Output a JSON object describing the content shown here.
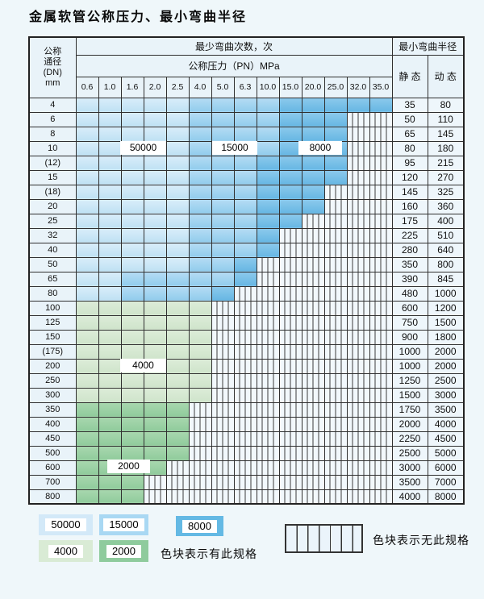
{
  "title": "金属软管公称压力、最小弯曲半径",
  "table": {
    "corner": [
      "公称",
      "通径",
      "(DN)",
      "mm"
    ],
    "bend_header": "最少弯曲次数，次",
    "pn_header": "公称压力（PN）MPa",
    "radius_header": "最小弯曲半径",
    "static_label": "静 态",
    "dynamic_label": "动 态",
    "pn_columns": [
      "0.6",
      "1.0",
      "1.6",
      "2.0",
      "2.5",
      "4.0",
      "5.0",
      "6.3",
      "10.0",
      "15.0",
      "20.0",
      "25.0",
      "32.0",
      "35.0"
    ],
    "cell_code_legend": {
      "L": "50000 cycles (light blue)",
      "M": "15000 cycles (medium blue)",
      "D": "8000 cycles (dark blue)",
      "g": "4000 cycles (light green)",
      "G": "2000 cycles (dark green)",
      ".": "no spec (striped)"
    },
    "rows": [
      {
        "dn": "4",
        "cells": "LLLLLMMMMDDDDD",
        "static": "35",
        "dynamic": "80"
      },
      {
        "dn": "6",
        "cells": "LLLLLMMMMDDD..",
        "static": "50",
        "dynamic": "110"
      },
      {
        "dn": "8",
        "cells": "LLLLLMMMMDDD..",
        "static": "65",
        "dynamic": "145"
      },
      {
        "dn": "10",
        "cells": "LLLLLMMMMDDD..",
        "static": "80",
        "dynamic": "180"
      },
      {
        "dn": "(12)",
        "cells": "LLLLLMMMDDDD..",
        "static": "95",
        "dynamic": "215"
      },
      {
        "dn": "15",
        "cells": "LLLLLMMMDDDD..",
        "static": "120",
        "dynamic": "270"
      },
      {
        "dn": "(18)",
        "cells": "LLLLLMMMDDD...",
        "static": "145",
        "dynamic": "325"
      },
      {
        "dn": "20",
        "cells": "LLLLLMMMDDD...",
        "static": "160",
        "dynamic": "360"
      },
      {
        "dn": "25",
        "cells": "LLLLLMMMDD....",
        "static": "175",
        "dynamic": "400"
      },
      {
        "dn": "32",
        "cells": "LLLLLMMMD.....",
        "static": "225",
        "dynamic": "510"
      },
      {
        "dn": "40",
        "cells": "LLLLLMMMD.....",
        "static": "280",
        "dynamic": "640"
      },
      {
        "dn": "50",
        "cells": "LLLLLMMD......",
        "static": "350",
        "dynamic": "800"
      },
      {
        "dn": "65",
        "cells": "LLMMMMMD......",
        "static": "390",
        "dynamic": "845"
      },
      {
        "dn": "80",
        "cells": "LLMMMMD.......",
        "static": "480",
        "dynamic": "1000"
      },
      {
        "dn": "100",
        "cells": "gggggg........",
        "static": "600",
        "dynamic": "1200"
      },
      {
        "dn": "125",
        "cells": "gggggg........",
        "static": "750",
        "dynamic": "1500"
      },
      {
        "dn": "150",
        "cells": "gggggg........",
        "static": "900",
        "dynamic": "1800"
      },
      {
        "dn": "(175)",
        "cells": "gggggg........",
        "static": "1000",
        "dynamic": "2000"
      },
      {
        "dn": "200",
        "cells": "gggggg........",
        "static": "1000",
        "dynamic": "2000"
      },
      {
        "dn": "250",
        "cells": "gggggg........",
        "static": "1250",
        "dynamic": "2500"
      },
      {
        "dn": "300",
        "cells": "gggggg........",
        "static": "1500",
        "dynamic": "3000"
      },
      {
        "dn": "350",
        "cells": "GGGGG.........",
        "static": "1750",
        "dynamic": "3500"
      },
      {
        "dn": "400",
        "cells": "GGGGG.........",
        "static": "2000",
        "dynamic": "4000"
      },
      {
        "dn": "450",
        "cells": "GGGGG.........",
        "static": "2250",
        "dynamic": "4500"
      },
      {
        "dn": "500",
        "cells": "GGGGG.........",
        "static": "2500",
        "dynamic": "5000"
      },
      {
        "dn": "600",
        "cells": "GGGG..........",
        "static": "3000",
        "dynamic": "6000"
      },
      {
        "dn": "700",
        "cells": "GGG...........",
        "static": "3500",
        "dynamic": "7000"
      },
      {
        "dn": "800",
        "cells": "GGG...........",
        "static": "4000",
        "dynamic": "8000"
      }
    ]
  },
  "overlays": {
    "o50000": "50000",
    "o15000": "15000",
    "o8000": "8000",
    "o4000": "4000",
    "o2000": "2000"
  },
  "legend": {
    "v50000": "50000",
    "v15000": "15000",
    "v8000": "8000",
    "v4000": "4000",
    "v2000": "2000",
    "has_spec": "色块表示有此规格",
    "no_spec": "色块表示无此规格"
  },
  "colors": {
    "cycles_50000": "#cfe7f8",
    "cycles_15000": "#a9d8f3",
    "cycles_8000": "#64b9e4",
    "cycles_4000": "#d9ebd5",
    "cycles_2000": "#8fcb9d",
    "no_spec_bg": "#f2f8fc",
    "grid_line": "#303030",
    "page_bg": "#eff7fa"
  }
}
